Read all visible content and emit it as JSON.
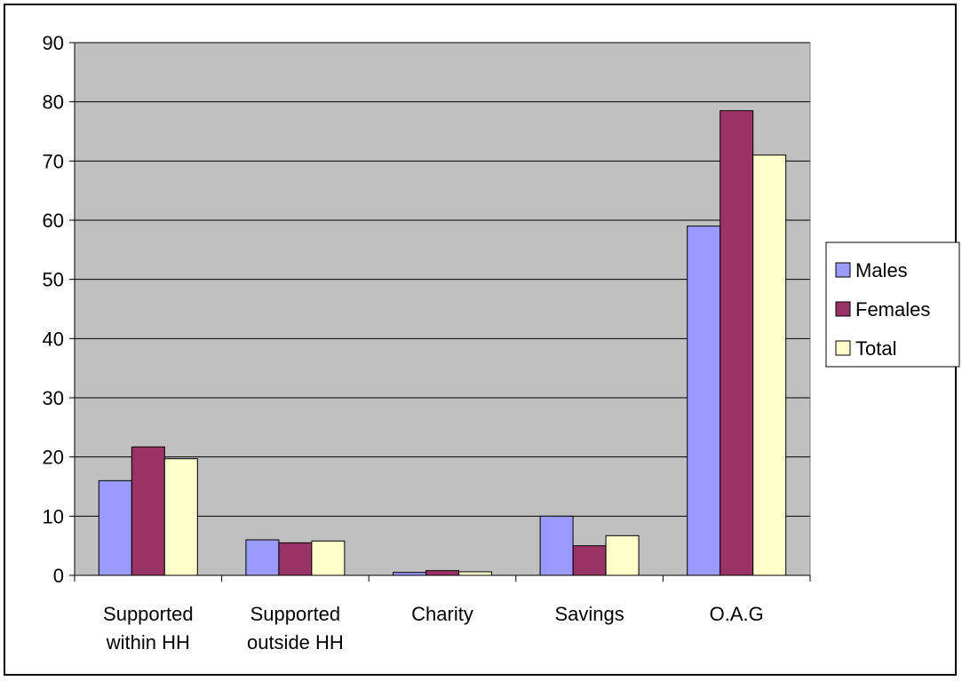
{
  "chart_data": {
    "type": "bar",
    "title": "",
    "xlabel": "",
    "ylabel": "",
    "categories": [
      [
        "Supported",
        "within HH"
      ],
      [
        "Supported",
        "outside HH"
      ],
      [
        "Charity"
      ],
      [
        "Savings"
      ],
      [
        "O.A.G"
      ]
    ],
    "series": [
      {
        "name": "Males",
        "color": "#9999ff",
        "values": [
          16,
          6,
          0.5,
          10,
          59
        ]
      },
      {
        "name": "Females",
        "color": "#993366",
        "values": [
          21.7,
          5.5,
          0.8,
          5,
          78.5
        ]
      },
      {
        "name": "Total",
        "color": "#ffffcc",
        "values": [
          19.7,
          5.8,
          0.6,
          6.7,
          71
        ]
      }
    ],
    "ylim": [
      0,
      90
    ],
    "yticks": [
      "0",
      "10",
      "20",
      "30",
      "40",
      "50",
      "60",
      "70",
      "80",
      "90"
    ],
    "grid": true,
    "plot_background": "#c0c0c0",
    "legend_position": "right"
  }
}
